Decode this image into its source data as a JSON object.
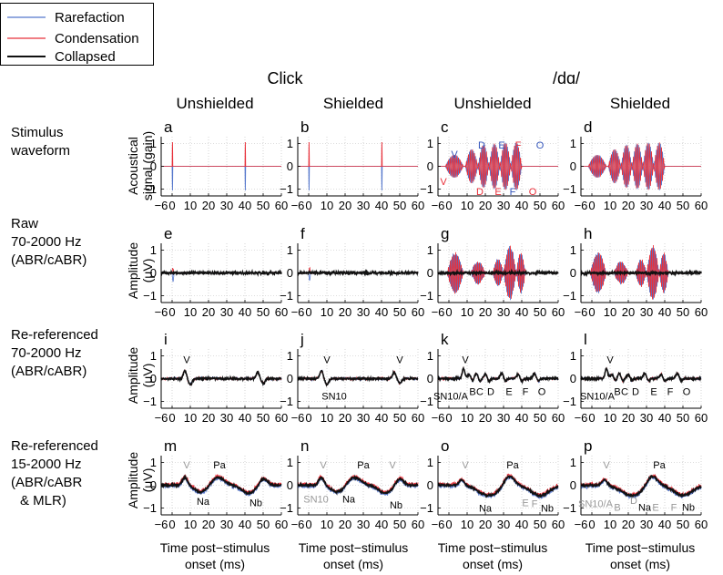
{
  "legend": {
    "entries": [
      {
        "name": "Rarefaction",
        "color": "#5577cc"
      },
      {
        "name": "Condensation",
        "color": "#e8303a"
      },
      {
        "name": "Collapsed",
        "color": "#111111"
      }
    ],
    "placement": "top-left"
  },
  "group_headers": [
    "Click",
    "/dɑ/"
  ],
  "column_headers": [
    "Unshielded",
    "Shielded",
    "Unshielded",
    "Shielded"
  ],
  "row_labels": [
    [
      "Stimulus",
      "waveform"
    ],
    [
      "Raw",
      "70-2000 Hz",
      "(ABR/cABR)"
    ],
    [
      "Re-referenced",
      "70-2000 Hz",
      "(ABR/cABR)"
    ],
    [
      "Re-referenced",
      "15-2000 Hz",
      "(ABR/cABR",
      "& MLR)"
    ]
  ],
  "ylabels": [
    [
      "Acoustical",
      "signal (gain)"
    ],
    [
      "Amplitude",
      "(μV)"
    ],
    [
      "Amplitude",
      "(μV)"
    ],
    [
      "Amplitude",
      "(μV)"
    ]
  ],
  "xlabel_lines": [
    "Time post−stimulus",
    "onset (ms)"
  ],
  "chart_data": {
    "type": "line",
    "layout": "4x4 small multiples",
    "xlim": [
      -6,
      60
    ],
    "xticks": [
      -6,
      0,
      10,
      20,
      30,
      40,
      50,
      60
    ],
    "ylim": [
      -1.3,
      1.3
    ],
    "yticks": [
      -1,
      0,
      1
    ],
    "grid": "dotted",
    "series_names": [
      "Rarefaction",
      "Condensation",
      "Collapsed"
    ],
    "panels": [
      {
        "letter": "a",
        "stimulus": "click",
        "row": 0,
        "col": 0,
        "annotations": []
      },
      {
        "letter": "b",
        "stimulus": "click",
        "row": 0,
        "col": 1,
        "annotations": []
      },
      {
        "letter": "c",
        "stimulus": "da",
        "row": 0,
        "col": 2,
        "annotations": [
          {
            "text": "V",
            "x": 3,
            "y": 0.55,
            "color": "#3355bb"
          },
          {
            "text": "V",
            "x": -3,
            "y": -0.65,
            "color": "#e8303a"
          },
          {
            "text": "D",
            "x": 18,
            "y": 0.95,
            "color": "#3355bb"
          },
          {
            "text": "E",
            "x": 29,
            "y": 0.95,
            "color": "#3355bb"
          },
          {
            "text": "F",
            "x": 38,
            "y": 0.95,
            "color": "#e8303a"
          },
          {
            "text": "O",
            "x": 50,
            "y": 0.95,
            "color": "#3355bb"
          },
          {
            "text": "D",
            "x": 17,
            "y": -1.1,
            "color": "#e8303a"
          },
          {
            "text": "E",
            "x": 27,
            "y": -1.1,
            "color": "#e8303a"
          },
          {
            "text": "F",
            "x": 35,
            "y": -1.1,
            "color": "#3355bb"
          },
          {
            "text": "O",
            "x": 46,
            "y": -1.1,
            "color": "#e8303a"
          }
        ]
      },
      {
        "letter": "d",
        "stimulus": "da",
        "row": 0,
        "col": 3,
        "annotations": []
      },
      {
        "letter": "e",
        "stimulus": "click",
        "row": 1,
        "col": 0,
        "annotations": []
      },
      {
        "letter": "f",
        "stimulus": "click",
        "row": 1,
        "col": 1,
        "annotations": []
      },
      {
        "letter": "g",
        "stimulus": "da",
        "row": 1,
        "col": 2,
        "annotations": []
      },
      {
        "letter": "h",
        "stimulus": "da",
        "row": 1,
        "col": 3,
        "annotations": []
      },
      {
        "letter": "i",
        "stimulus": "click",
        "row": 2,
        "col": 0,
        "annotations": [
          {
            "text": "V",
            "x": 8,
            "y": 0.85,
            "color": "#000000"
          }
        ]
      },
      {
        "letter": "j",
        "stimulus": "click",
        "row": 2,
        "col": 1,
        "annotations": [
          {
            "text": "V",
            "x": 10,
            "y": 0.85,
            "color": "#000000"
          },
          {
            "text": "V",
            "x": 50,
            "y": 0.85,
            "color": "#000000"
          },
          {
            "text": "SN10",
            "x": 14,
            "y": -0.75,
            "color": "#000000"
          }
        ]
      },
      {
        "letter": "k",
        "stimulus": "da",
        "row": 2,
        "col": 2,
        "annotations": [
          {
            "text": "V",
            "x": 9,
            "y": 0.85,
            "color": "#000000"
          },
          {
            "text": "SN10/A",
            "x": 1,
            "y": -0.75,
            "color": "#000000"
          },
          {
            "text": "B",
            "x": 13,
            "y": -0.55,
            "color": "#000000"
          },
          {
            "text": "C",
            "x": 17,
            "y": -0.55,
            "color": "#000000"
          },
          {
            "text": "D",
            "x": 23,
            "y": -0.55,
            "color": "#000000"
          },
          {
            "text": "E",
            "x": 33,
            "y": -0.55,
            "color": "#000000"
          },
          {
            "text": "F",
            "x": 42,
            "y": -0.55,
            "color": "#000000"
          },
          {
            "text": "O",
            "x": 51,
            "y": -0.55,
            "color": "#000000"
          }
        ]
      },
      {
        "letter": "l",
        "stimulus": "da",
        "row": 2,
        "col": 3,
        "annotations": [
          {
            "text": "V",
            "x": 10,
            "y": 0.85,
            "color": "#000000"
          },
          {
            "text": "SN10/A",
            "x": 3,
            "y": -0.75,
            "color": "#000000"
          },
          {
            "text": "B",
            "x": 14,
            "y": -0.55,
            "color": "#000000"
          },
          {
            "text": "C",
            "x": 18,
            "y": -0.55,
            "color": "#000000"
          },
          {
            "text": "D",
            "x": 24,
            "y": -0.55,
            "color": "#000000"
          },
          {
            "text": "E",
            "x": 34,
            "y": -0.55,
            "color": "#000000"
          },
          {
            "text": "F",
            "x": 43,
            "y": -0.55,
            "color": "#000000"
          },
          {
            "text": "O",
            "x": 52,
            "y": -0.55,
            "color": "#000000"
          }
        ]
      },
      {
        "letter": "m",
        "stimulus": "click",
        "row": 3,
        "col": 0,
        "annotations": [
          {
            "text": "V",
            "x": 8,
            "y": 0.9,
            "color": "#999999"
          },
          {
            "text": "Pa",
            "x": 26,
            "y": 0.9,
            "color": "#000000"
          },
          {
            "text": "Na",
            "x": 17,
            "y": -0.7,
            "color": "#000000"
          },
          {
            "text": "Nb",
            "x": 46,
            "y": -0.75,
            "color": "#000000"
          }
        ]
      },
      {
        "letter": "n",
        "stimulus": "click",
        "row": 3,
        "col": 1,
        "annotations": [
          {
            "text": "V",
            "x": 8,
            "y": 0.9,
            "color": "#999999"
          },
          {
            "text": "V",
            "x": 46,
            "y": 0.9,
            "color": "#999999"
          },
          {
            "text": "Pa",
            "x": 30,
            "y": 0.9,
            "color": "#000000"
          },
          {
            "text": "SN10",
            "x": 4,
            "y": -0.6,
            "color": "#999999"
          },
          {
            "text": "Na",
            "x": 22,
            "y": -0.6,
            "color": "#000000"
          },
          {
            "text": "Nb",
            "x": 48,
            "y": -0.85,
            "color": "#000000"
          }
        ]
      },
      {
        "letter": "o",
        "stimulus": "da",
        "row": 3,
        "col": 2,
        "annotations": [
          {
            "text": "V",
            "x": 9,
            "y": 0.9,
            "color": "#999999"
          },
          {
            "text": "Pa",
            "x": 35,
            "y": 0.9,
            "color": "#000000"
          },
          {
            "text": "Na",
            "x": 20,
            "y": -1.0,
            "color": "#000000"
          },
          {
            "text": "E",
            "x": 42,
            "y": -0.75,
            "color": "#999999"
          },
          {
            "text": "F",
            "x": 47,
            "y": -0.8,
            "color": "#999999"
          },
          {
            "text": "Nb",
            "x": 54,
            "y": -1.0,
            "color": "#000000"
          }
        ]
      },
      {
        "letter": "p",
        "stimulus": "da",
        "row": 3,
        "col": 3,
        "annotations": [
          {
            "text": "V",
            "x": 8,
            "y": 0.9,
            "color": "#999999"
          },
          {
            "text": "Pa",
            "x": 37,
            "y": 0.9,
            "color": "#000000"
          },
          {
            "text": "SN10/A",
            "x": 2,
            "y": -0.8,
            "color": "#999999"
          },
          {
            "text": "B",
            "x": 14,
            "y": -0.95,
            "color": "#999999"
          },
          {
            "text": "D",
            "x": 23,
            "y": -0.65,
            "color": "#999999"
          },
          {
            "text": "Na",
            "x": 29,
            "y": -0.95,
            "color": "#000000"
          },
          {
            "text": "E",
            "x": 35,
            "y": -0.95,
            "color": "#999999"
          },
          {
            "text": "F",
            "x": 45,
            "y": -0.95,
            "color": "#999999"
          },
          {
            "text": "Nb",
            "x": 53,
            "y": -0.95,
            "color": "#000000"
          }
        ]
      }
    ]
  }
}
